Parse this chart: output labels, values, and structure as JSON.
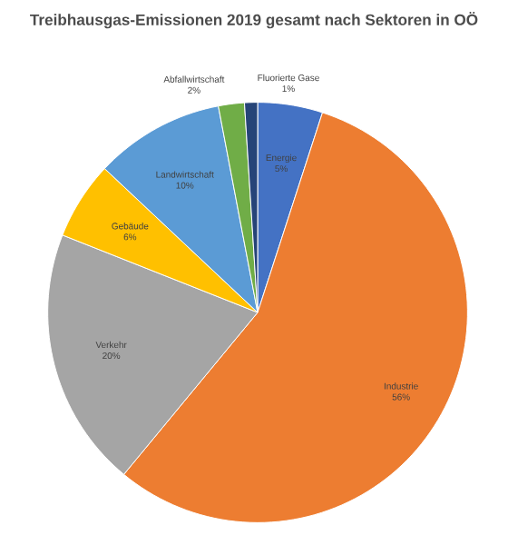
{
  "chart_data": {
    "type": "pie",
    "title": "Treibhausgas-Emissionen 2019 gesamt nach Sektoren in OÖ",
    "categories": [
      "Energie",
      "Industrie",
      "Verkehr",
      "Gebäude",
      "Landwirtschaft",
      "Abfallwirtschaft",
      "Fluorierte Gase"
    ],
    "values": [
      5,
      56,
      20,
      6,
      10,
      2,
      1
    ],
    "value_labels": [
      "5%",
      "56%",
      "20%",
      "6%",
      "10%",
      "2%",
      "1%"
    ],
    "colors": [
      "#4472c4",
      "#ed7d31",
      "#a5a5a5",
      "#ffc000",
      "#5b9bd5",
      "#70ad47",
      "#264478"
    ]
  }
}
